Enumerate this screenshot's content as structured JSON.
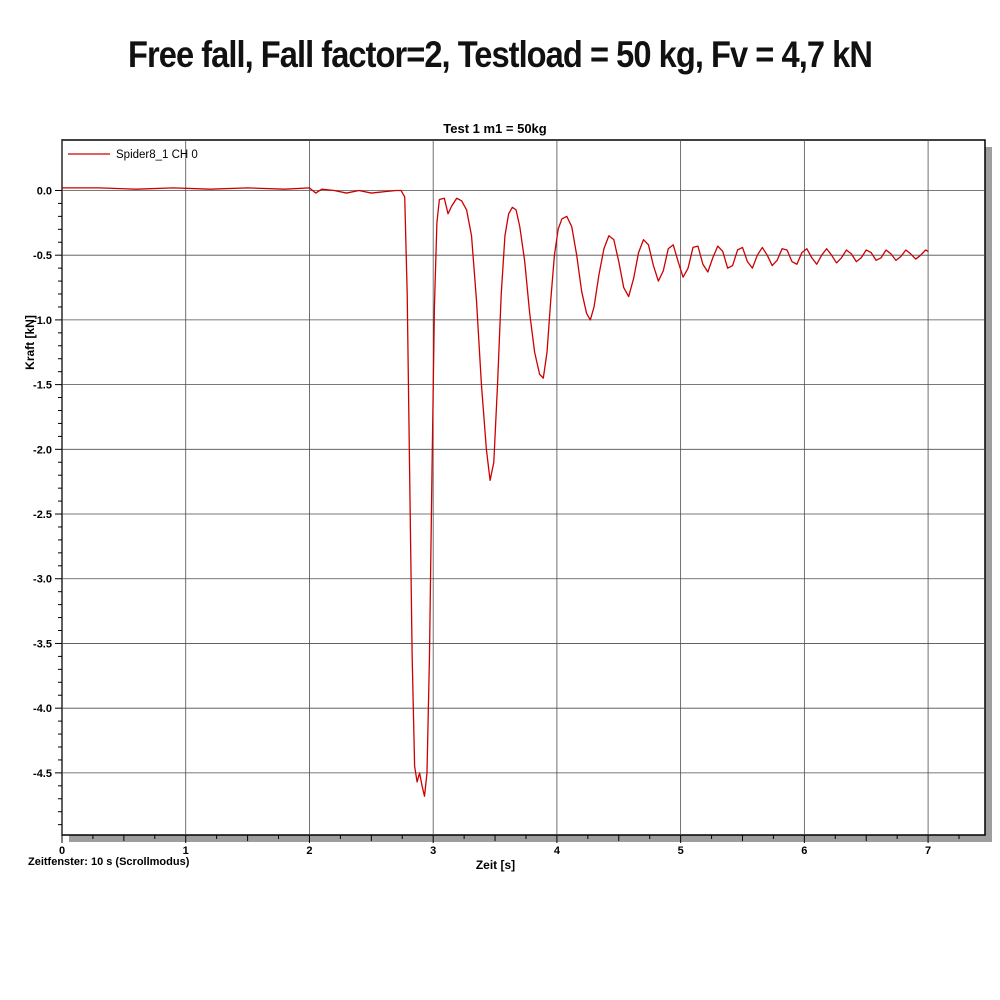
{
  "page": {
    "title": "Free fall, Fall factor=2, Testload = 50 kg, Fv = 4,7 kN",
    "status_line": "Zeitfenster: 10 s (Scrollmodus)"
  },
  "chart_data": {
    "type": "line",
    "title": "Test 1 m1 = 50kg",
    "xlabel": "Zeit [s]",
    "ylabel": "Kraft [kN]",
    "grid": true,
    "legend_position": "top-left",
    "legend": [
      {
        "name": "Spider8_1 CH 0",
        "color": "#cc0000"
      }
    ],
    "xlim": [
      0,
      7.46
    ],
    "ylim": [
      -4.98,
      0.39
    ],
    "x_ticks": [
      0,
      1,
      2,
      3,
      4,
      5,
      6,
      7
    ],
    "y_ticks": [
      0.0,
      -0.5,
      -1.0,
      -1.5,
      -2.0,
      -2.5,
      -3.0,
      -3.5,
      -4.0,
      -4.5
    ],
    "x_minor_step": 0.25,
    "y_minor_step": 0.1,
    "series": [
      {
        "name": "Spider8_1 CH 0",
        "color": "#cc0000",
        "points": [
          [
            0.0,
            0.02
          ],
          [
            0.3,
            0.02
          ],
          [
            0.6,
            0.01
          ],
          [
            0.9,
            0.02
          ],
          [
            1.2,
            0.01
          ],
          [
            1.5,
            0.02
          ],
          [
            1.8,
            0.01
          ],
          [
            2.0,
            0.02
          ],
          [
            2.05,
            -0.02
          ],
          [
            2.1,
            0.01
          ],
          [
            2.2,
            0.0
          ],
          [
            2.3,
            -0.02
          ],
          [
            2.4,
            0.0
          ],
          [
            2.5,
            -0.02
          ],
          [
            2.6,
            -0.01
          ],
          [
            2.7,
            0.0
          ],
          [
            2.74,
            0.0
          ],
          [
            2.77,
            -0.05
          ],
          [
            2.79,
            -0.8
          ],
          [
            2.81,
            -2.2
          ],
          [
            2.83,
            -3.6
          ],
          [
            2.85,
            -4.45
          ],
          [
            2.87,
            -4.57
          ],
          [
            2.89,
            -4.5
          ],
          [
            2.91,
            -4.6
          ],
          [
            2.93,
            -4.68
          ],
          [
            2.95,
            -4.5
          ],
          [
            2.97,
            -3.6
          ],
          [
            2.99,
            -2.2
          ],
          [
            3.01,
            -0.9
          ],
          [
            3.03,
            -0.25
          ],
          [
            3.05,
            -0.07
          ],
          [
            3.09,
            -0.06
          ],
          [
            3.12,
            -0.18
          ],
          [
            3.15,
            -0.12
          ],
          [
            3.19,
            -0.06
          ],
          [
            3.23,
            -0.08
          ],
          [
            3.27,
            -0.15
          ],
          [
            3.31,
            -0.35
          ],
          [
            3.35,
            -0.85
          ],
          [
            3.39,
            -1.5
          ],
          [
            3.43,
            -2.0
          ],
          [
            3.46,
            -2.24
          ],
          [
            3.49,
            -2.1
          ],
          [
            3.52,
            -1.5
          ],
          [
            3.55,
            -0.8
          ],
          [
            3.58,
            -0.35
          ],
          [
            3.61,
            -0.18
          ],
          [
            3.64,
            -0.13
          ],
          [
            3.67,
            -0.15
          ],
          [
            3.7,
            -0.28
          ],
          [
            3.74,
            -0.55
          ],
          [
            3.78,
            -0.95
          ],
          [
            3.82,
            -1.25
          ],
          [
            3.86,
            -1.42
          ],
          [
            3.89,
            -1.45
          ],
          [
            3.92,
            -1.25
          ],
          [
            3.95,
            -0.85
          ],
          [
            3.98,
            -0.5
          ],
          [
            4.01,
            -0.3
          ],
          [
            4.04,
            -0.22
          ],
          [
            4.08,
            -0.2
          ],
          [
            4.12,
            -0.28
          ],
          [
            4.16,
            -0.5
          ],
          [
            4.2,
            -0.78
          ],
          [
            4.24,
            -0.95
          ],
          [
            4.27,
            -1.0
          ],
          [
            4.3,
            -0.9
          ],
          [
            4.34,
            -0.65
          ],
          [
            4.38,
            -0.45
          ],
          [
            4.42,
            -0.35
          ],
          [
            4.46,
            -0.38
          ],
          [
            4.5,
            -0.55
          ],
          [
            4.54,
            -0.75
          ],
          [
            4.58,
            -0.82
          ],
          [
            4.62,
            -0.68
          ],
          [
            4.66,
            -0.48
          ],
          [
            4.7,
            -0.38
          ],
          [
            4.74,
            -0.42
          ],
          [
            4.78,
            -0.58
          ],
          [
            4.82,
            -0.7
          ],
          [
            4.86,
            -0.62
          ],
          [
            4.9,
            -0.45
          ],
          [
            4.94,
            -0.42
          ],
          [
            4.98,
            -0.55
          ],
          [
            5.02,
            -0.67
          ],
          [
            5.06,
            -0.6
          ],
          [
            5.1,
            -0.44
          ],
          [
            5.14,
            -0.43
          ],
          [
            5.18,
            -0.57
          ],
          [
            5.22,
            -0.63
          ],
          [
            5.26,
            -0.52
          ],
          [
            5.3,
            -0.43
          ],
          [
            5.34,
            -0.47
          ],
          [
            5.38,
            -0.6
          ],
          [
            5.42,
            -0.58
          ],
          [
            5.46,
            -0.46
          ],
          [
            5.5,
            -0.44
          ],
          [
            5.54,
            -0.55
          ],
          [
            5.58,
            -0.6
          ],
          [
            5.62,
            -0.5
          ],
          [
            5.66,
            -0.44
          ],
          [
            5.7,
            -0.5
          ],
          [
            5.74,
            -0.58
          ],
          [
            5.78,
            -0.54
          ],
          [
            5.82,
            -0.45
          ],
          [
            5.86,
            -0.46
          ],
          [
            5.9,
            -0.55
          ],
          [
            5.94,
            -0.57
          ],
          [
            5.98,
            -0.48
          ],
          [
            6.02,
            -0.45
          ],
          [
            6.06,
            -0.52
          ],
          [
            6.1,
            -0.57
          ],
          [
            6.14,
            -0.5
          ],
          [
            6.18,
            -0.45
          ],
          [
            6.22,
            -0.5
          ],
          [
            6.26,
            -0.56
          ],
          [
            6.3,
            -0.52
          ],
          [
            6.34,
            -0.46
          ],
          [
            6.38,
            -0.49
          ],
          [
            6.42,
            -0.55
          ],
          [
            6.46,
            -0.52
          ],
          [
            6.5,
            -0.46
          ],
          [
            6.54,
            -0.48
          ],
          [
            6.58,
            -0.54
          ],
          [
            6.62,
            -0.52
          ],
          [
            6.66,
            -0.46
          ],
          [
            6.7,
            -0.49
          ],
          [
            6.74,
            -0.54
          ],
          [
            6.78,
            -0.51
          ],
          [
            6.82,
            -0.46
          ],
          [
            6.86,
            -0.49
          ],
          [
            6.9,
            -0.53
          ],
          [
            6.94,
            -0.5
          ],
          [
            6.98,
            -0.46
          ],
          [
            7.0,
            -0.47
          ]
        ]
      }
    ]
  }
}
